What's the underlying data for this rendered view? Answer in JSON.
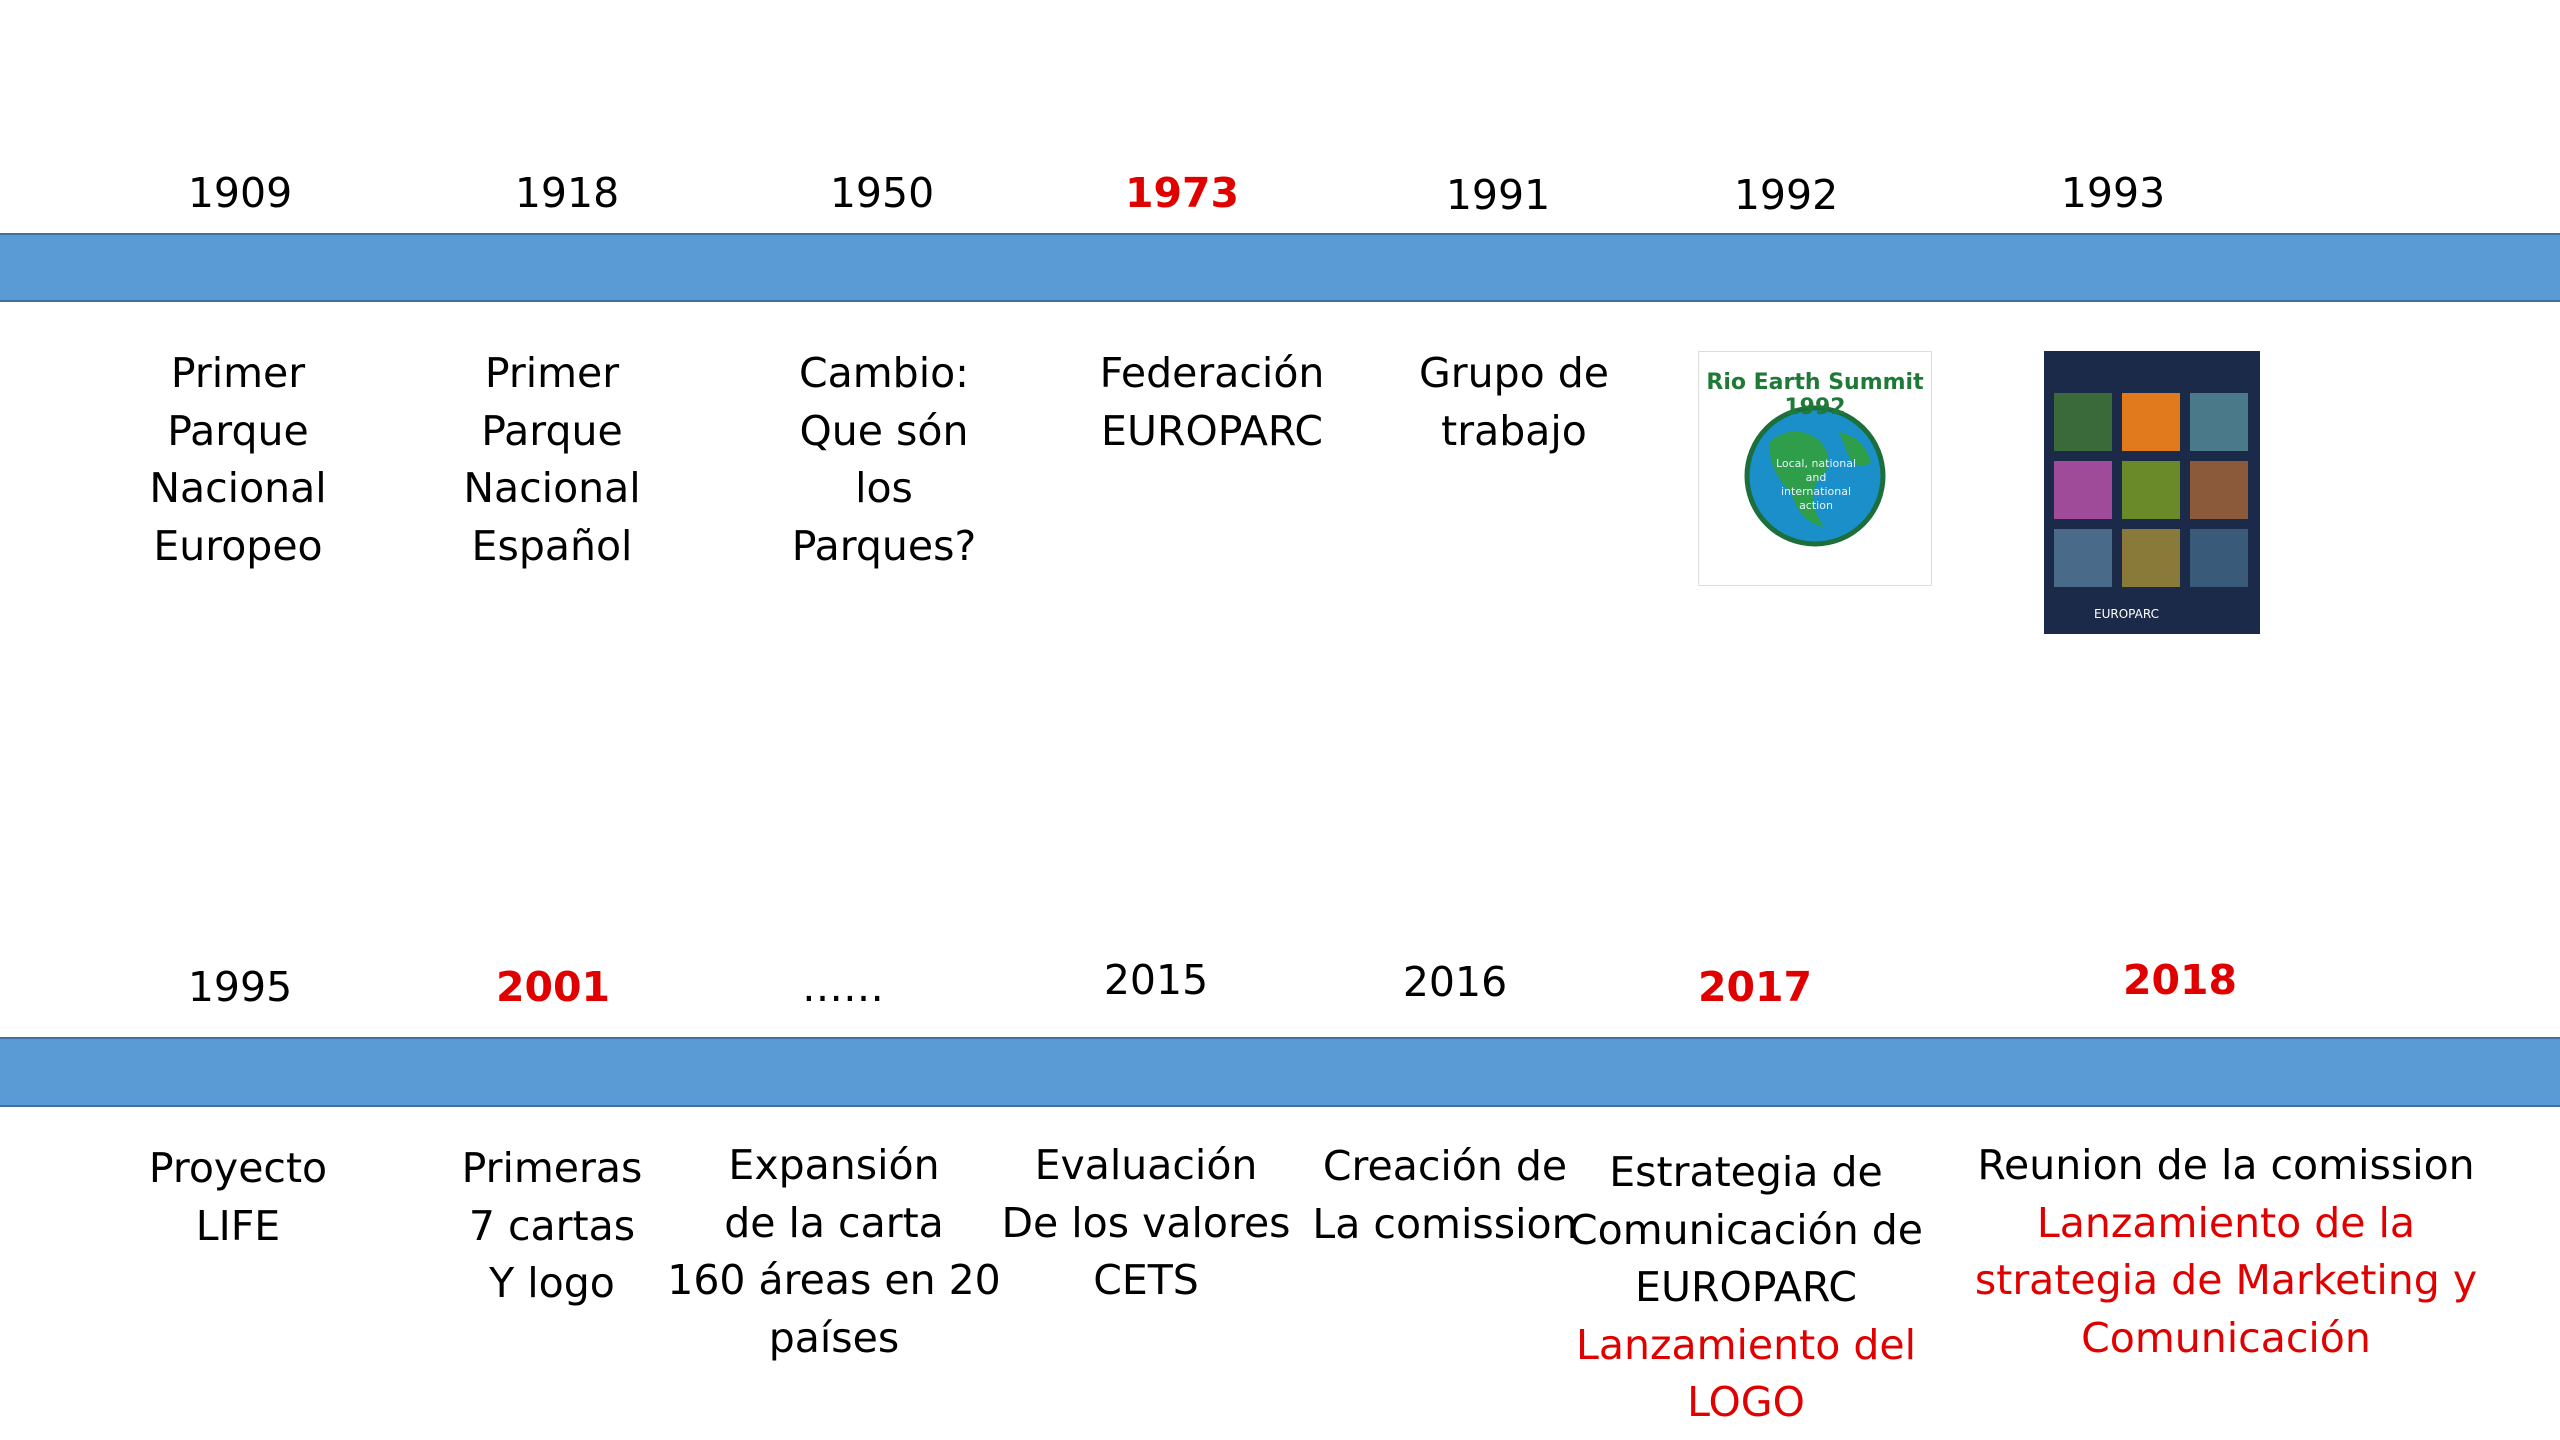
{
  "rows": [
    {
      "items": [
        {
          "year": "1909",
          "text": [
            "Primer",
            "Parque",
            "Nacional",
            "Europeo"
          ]
        },
        {
          "year": "1918",
          "text": [
            "Primer",
            "Parque",
            "Nacional",
            "Español"
          ]
        },
        {
          "year": "1950",
          "text": [
            "Cambio:",
            "Que són",
            "los",
            "Parques?"
          ]
        },
        {
          "year": "1973",
          "year_color": "#e00000",
          "text": [
            "Federación",
            "EUROPARC"
          ]
        },
        {
          "year": "1991",
          "text": [
            "Grupo de",
            "trabajo"
          ]
        },
        {
          "year": "1992",
          "image": {
            "title": "Rio Earth Summit 1992",
            "caption": "Local, national and international action"
          }
        },
        {
          "year": "1993",
          "image": {
            "label": "EUROPARC"
          }
        }
      ]
    },
    {
      "items": [
        {
          "year": "1995",
          "text": [
            "Proyecto",
            "LIFE"
          ]
        },
        {
          "year": "2001",
          "year_color": "#e00000",
          "text": [
            "Primeras",
            "7 cartas",
            "Y logo"
          ]
        },
        {
          "year": "……",
          "text": [
            "Expansión",
            "de la carta",
            "160 áreas en 20",
            "países"
          ]
        },
        {
          "year": "2015",
          "text": [
            "Evaluación",
            "De los valores",
            "CETS"
          ]
        },
        {
          "year": "2016",
          "text": [
            "Creación de",
            "La comission"
          ]
        },
        {
          "year": "2017",
          "year_color": "#e00000",
          "text": [
            "Estrategia de",
            "Comunicación de",
            "EUROPARC"
          ],
          "text_red": [
            "Lanzamiento del",
            "LOGO"
          ]
        },
        {
          "year": "2018",
          "year_color": "#e00000",
          "text": [
            "Reunion de la comission"
          ],
          "text_red": [
            "Lanzamiento de la",
            "strategia de Marketing y",
            "Comunicación"
          ]
        }
      ]
    }
  ]
}
